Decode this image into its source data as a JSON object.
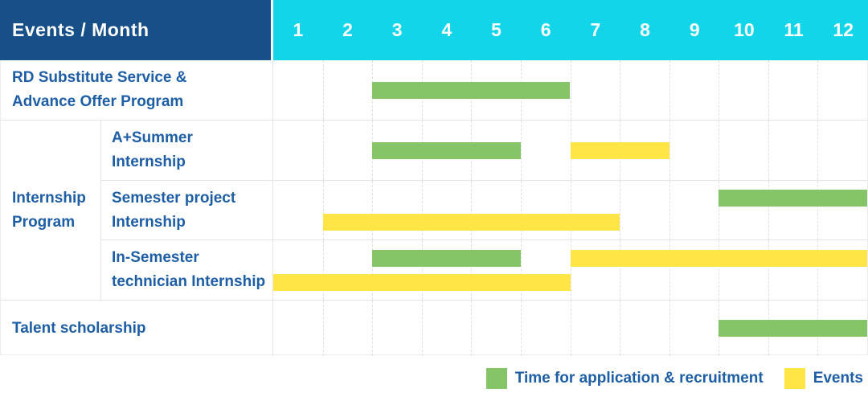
{
  "colors": {
    "header_bg": "#174f89",
    "months_bg": "#12d5e9",
    "label_text": "#1d5ea6",
    "grid_line": "#e4e4e4",
    "green": "#85c467",
    "yellow": "#ffe545"
  },
  "header": {
    "corner_title": "Events / Month",
    "months": [
      "1",
      "2",
      "3",
      "4",
      "5",
      "6",
      "7",
      "8",
      "9",
      "10",
      "11",
      "12"
    ]
  },
  "group_cell": {
    "label": "Internship Program",
    "lines": [
      "Internship",
      "Program"
    ]
  },
  "chart_data": {
    "type": "table",
    "subtype": "gantt",
    "title": "Events / Month",
    "x_axis": {
      "label": "Month",
      "ticks": [
        "1",
        "2",
        "3",
        "4",
        "5",
        "6",
        "7",
        "8",
        "9",
        "10",
        "11",
        "12"
      ],
      "range": [
        1,
        12
      ]
    },
    "legend_series": [
      {
        "series": "Time for application & recruitment",
        "color": "green"
      },
      {
        "series": "Events",
        "color": "yellow"
      }
    ],
    "rows": [
      {
        "label": "RD Substitute Service & Advance Offer Program",
        "lines": [
          "RD Substitute Service &",
          "Advance Offer Program"
        ],
        "group": null,
        "bars": [
          {
            "series": "Time for application & recruitment",
            "color": "green",
            "start_month": 3,
            "end_month": 6,
            "track": 0
          }
        ]
      },
      {
        "label": "A+Summer Internship",
        "lines": [
          "A+Summer",
          "Internship"
        ],
        "group": "Internship Program",
        "bars": [
          {
            "series": "Time for application & recruitment",
            "color": "green",
            "start_month": 3,
            "end_month": 5,
            "track": 0
          },
          {
            "series": "Events",
            "color": "yellow",
            "start_month": 7,
            "end_month": 8,
            "track": 0
          }
        ]
      },
      {
        "label": "Semester project Internship",
        "lines": [
          "Semester project",
          "Internship"
        ],
        "group": "Internship Program",
        "bars": [
          {
            "series": "Time for application & recruitment",
            "color": "green",
            "start_month": 10,
            "end_month": 12,
            "track": 0
          },
          {
            "series": "Events",
            "color": "yellow",
            "start_month": 2,
            "end_month": 7,
            "track": 1
          }
        ]
      },
      {
        "label": "In-Semester technician Internship",
        "lines": [
          "In-Semester",
          "technician Internship"
        ],
        "group": "Internship Program",
        "bars": [
          {
            "series": "Time for application & recruitment",
            "color": "green",
            "start_month": 3,
            "end_month": 5,
            "track": 0
          },
          {
            "series": "Events",
            "color": "yellow",
            "start_month": 7,
            "end_month": 12,
            "track": 0
          },
          {
            "series": "Events",
            "color": "yellow",
            "start_month": 1,
            "end_month": 6,
            "track": 1
          }
        ]
      },
      {
        "label": "Talent scholarship",
        "lines": [
          "Talent scholarship"
        ],
        "group": null,
        "bars": [
          {
            "series": "Time for application & recruitment",
            "color": "green",
            "start_month": 10,
            "end_month": 12,
            "track": 0
          }
        ]
      }
    ]
  },
  "legend": {
    "items": [
      {
        "label": "Time for application & recruitment",
        "color": "green"
      },
      {
        "label": "Events",
        "color": "yellow"
      }
    ]
  }
}
